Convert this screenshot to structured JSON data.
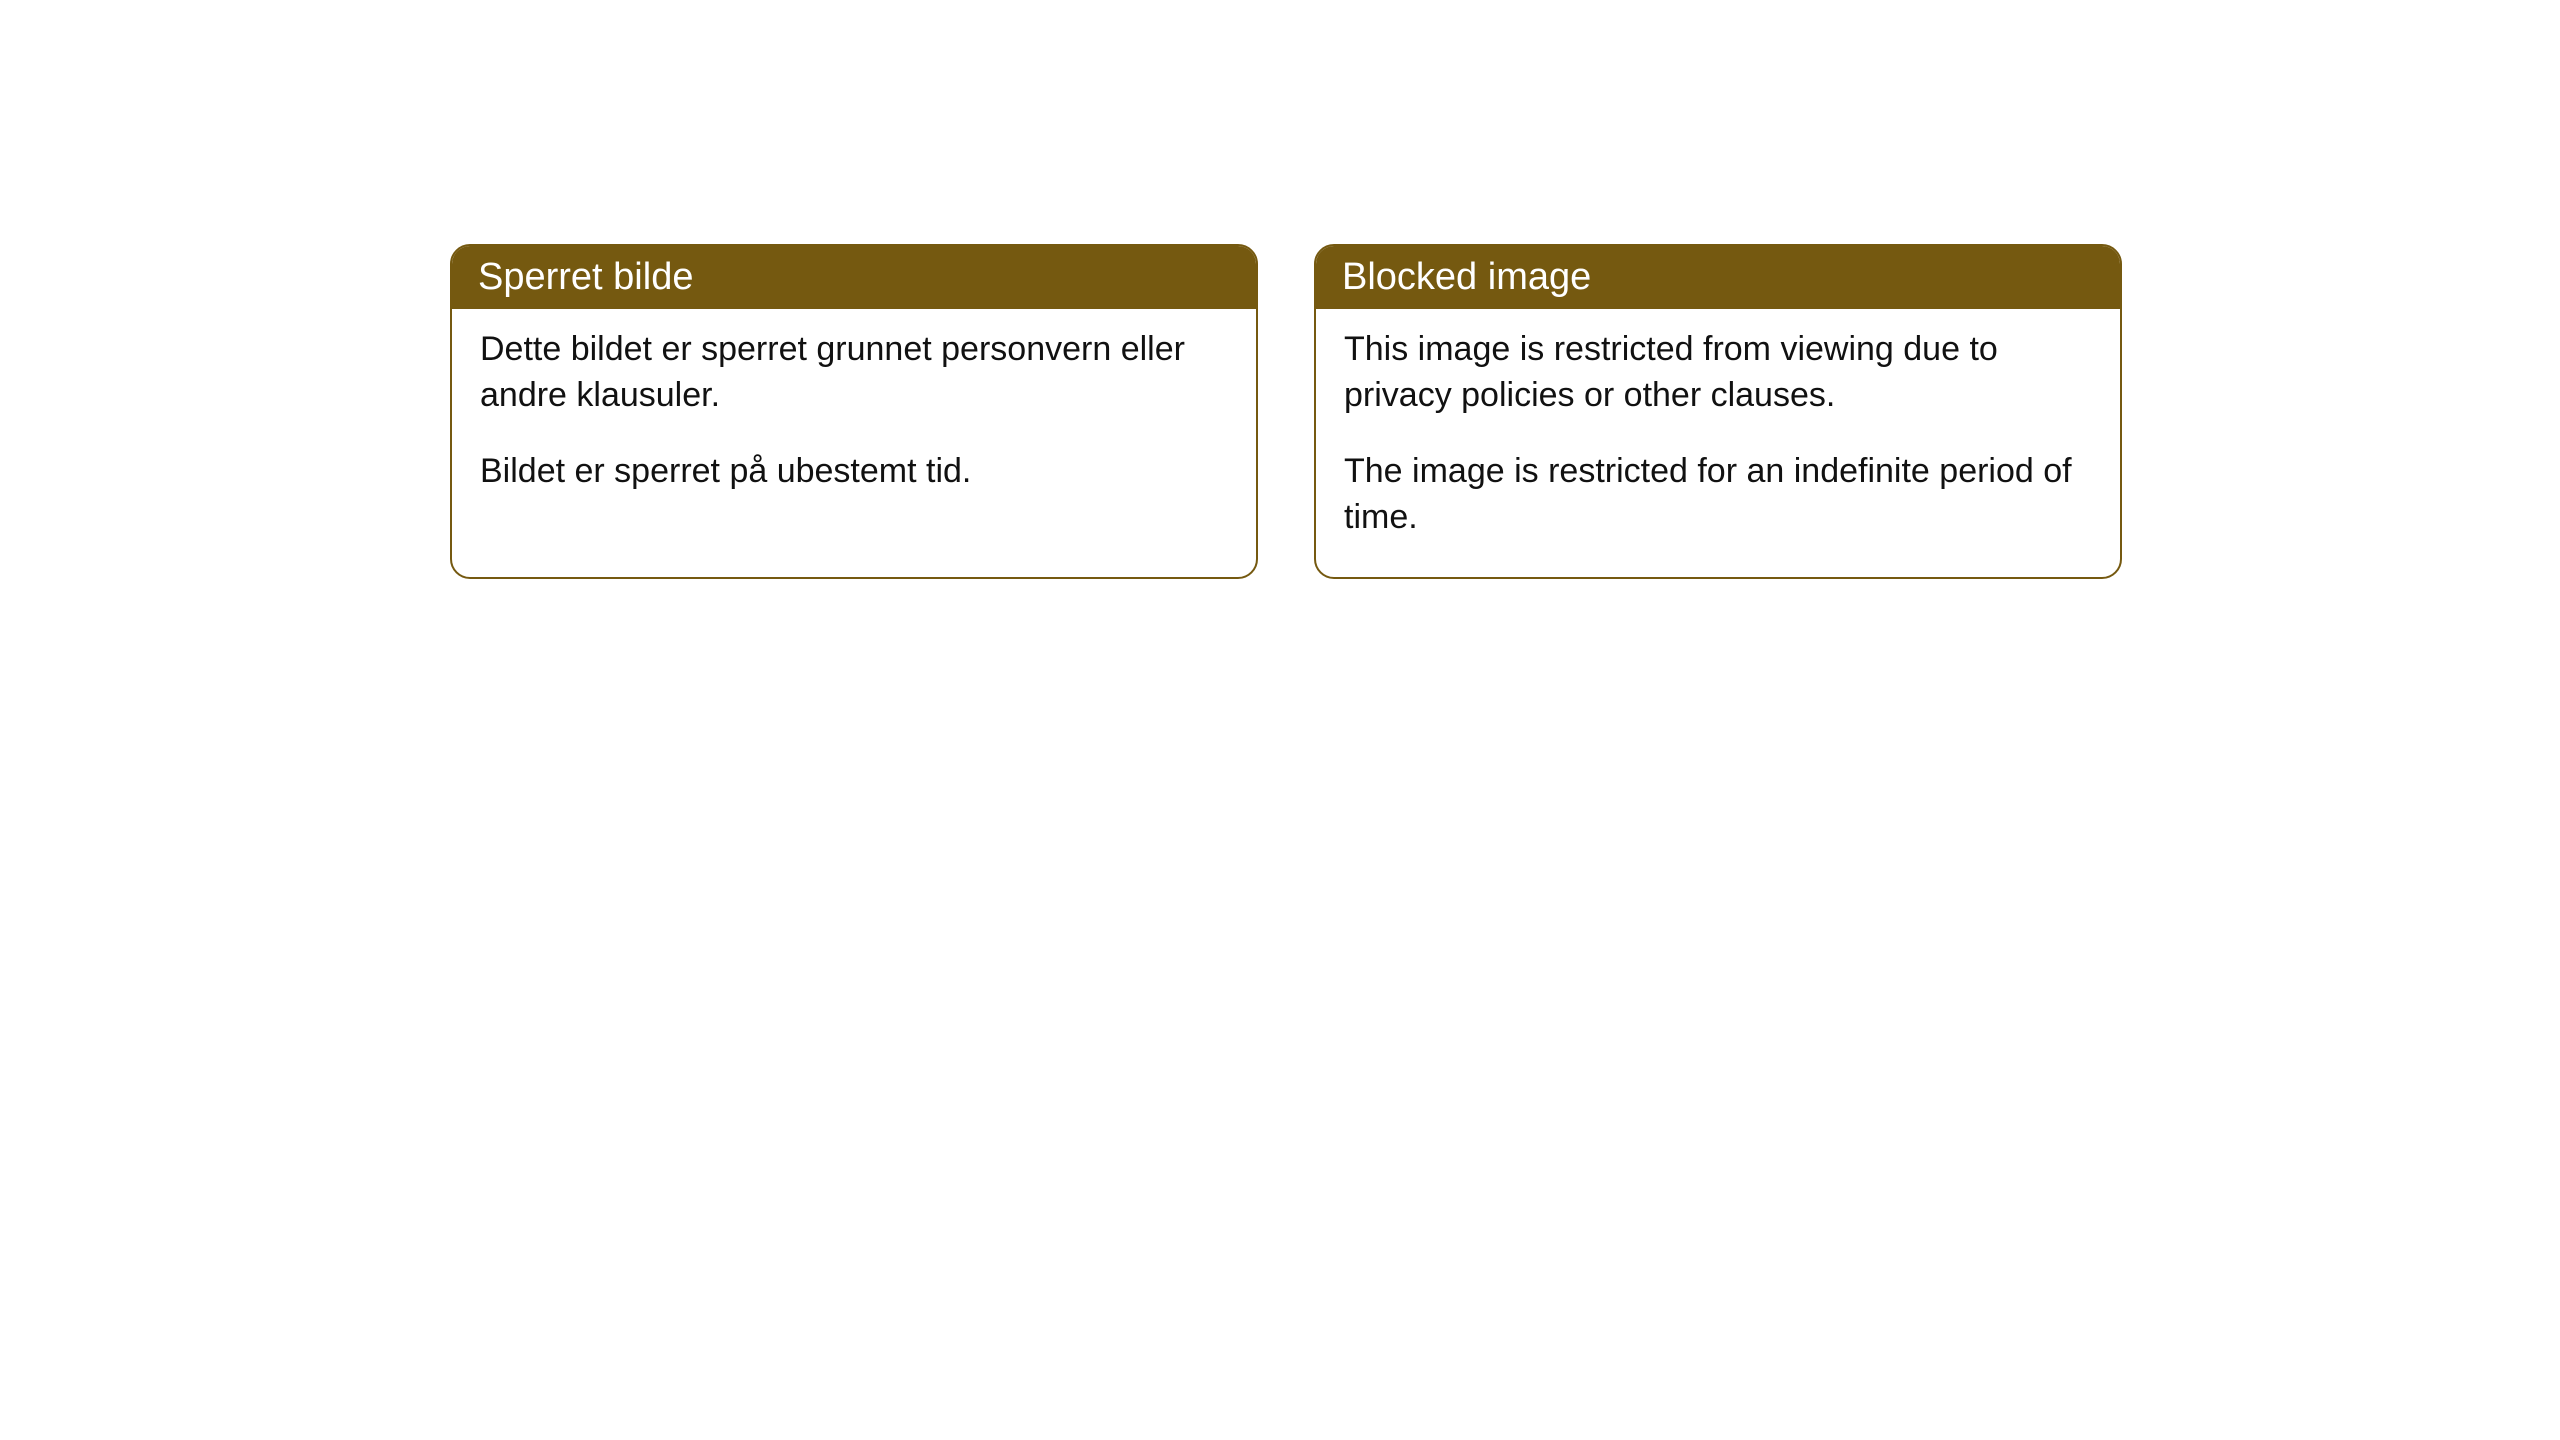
{
  "cards": [
    {
      "title": "Sperret bilde",
      "para1": "Dette bildet er sperret grunnet personvern eller andre klausuler.",
      "para2": "Bildet er sperret på ubestemt tid."
    },
    {
      "title": "Blocked image",
      "para1": "This image is restricted from viewing due to privacy policies or other clauses.",
      "para2": "The image is restricted for an indefinite period of time."
    }
  ],
  "style": {
    "header_bg": "#755910",
    "header_text": "#ffffff",
    "border_color": "#755910",
    "body_bg": "#ffffff",
    "body_text": "#111111",
    "border_radius": "20px",
    "header_fontsize": "38px",
    "body_fontsize": "34px"
  }
}
